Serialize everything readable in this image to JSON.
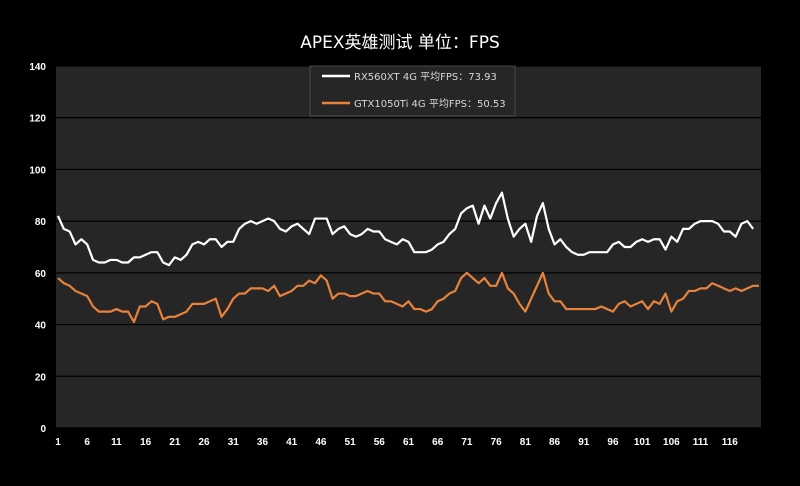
{
  "chart_data": {
    "type": "line",
    "title": "APEX英雄测试 单位：FPS",
    "xlabel": "",
    "ylabel": "",
    "ylim": [
      0,
      140
    ],
    "yticks": [
      0,
      20,
      40,
      60,
      80,
      100,
      120,
      140
    ],
    "xlim": [
      1,
      121
    ],
    "xticks": [
      1,
      6,
      11,
      16,
      21,
      26,
      31,
      36,
      41,
      46,
      51,
      56,
      61,
      66,
      71,
      76,
      81,
      86,
      91,
      96,
      101,
      106,
      111,
      116
    ],
    "grid": true,
    "legend_position": "top-center",
    "series": [
      {
        "name": "RX560XT 4G 平均FPS：73.93",
        "color": "#ffffff",
        "values": [
          82,
          77,
          76,
          71,
          73,
          71,
          65,
          64,
          64,
          65,
          65,
          64,
          64,
          66,
          66,
          67,
          68,
          68,
          64,
          63,
          66,
          65,
          67,
          71,
          72,
          71,
          73,
          73,
          70,
          72,
          72,
          77,
          79,
          80,
          79,
          80,
          81,
          80,
          77,
          76,
          78,
          79,
          77,
          75,
          81,
          81,
          81,
          75,
          77,
          78,
          75,
          74,
          75,
          77,
          76,
          76,
          73,
          72,
          71,
          73,
          72,
          68,
          68,
          68,
          69,
          71,
          72,
          75,
          77,
          83,
          85,
          86,
          79,
          86,
          81,
          87,
          91,
          81,
          74,
          77,
          79,
          72,
          82,
          87,
          77,
          71,
          73,
          70,
          68,
          67,
          67,
          68,
          68,
          68,
          68,
          71,
          72,
          70,
          70,
          72,
          73,
          72,
          73,
          73,
          69,
          74,
          72,
          77,
          77,
          79,
          80,
          80,
          80,
          79,
          76,
          76,
          74,
          79,
          80,
          77
        ]
      },
      {
        "name": "GTX1050Ti 4G 平均FPS：50.53",
        "color": "#e8823c",
        "values": [
          58,
          56,
          55,
          53,
          52,
          51,
          47,
          45,
          45,
          45,
          46,
          45,
          45,
          41,
          47,
          47,
          49,
          48,
          42,
          43,
          43,
          44,
          45,
          48,
          48,
          48,
          49,
          50,
          43,
          46,
          50,
          52,
          52,
          54,
          54,
          54,
          53,
          55,
          51,
          52,
          53,
          55,
          55,
          57,
          56,
          59,
          57,
          50,
          52,
          52,
          51,
          51,
          52,
          53,
          52,
          52,
          49,
          49,
          48,
          47,
          49,
          46,
          46,
          45,
          46,
          49,
          50,
          52,
          53,
          58,
          60,
          58,
          56,
          58,
          55,
          55,
          60,
          54,
          52,
          48,
          45,
          50,
          55,
          60,
          52,
          49,
          49,
          46,
          46,
          46,
          46,
          46,
          46,
          47,
          46,
          45,
          48,
          49,
          47,
          48,
          49,
          46,
          49,
          48,
          52,
          45,
          49,
          50,
          53,
          53,
          54,
          54,
          56,
          55,
          54,
          53,
          54,
          53,
          54,
          55,
          55
        ]
      }
    ]
  }
}
